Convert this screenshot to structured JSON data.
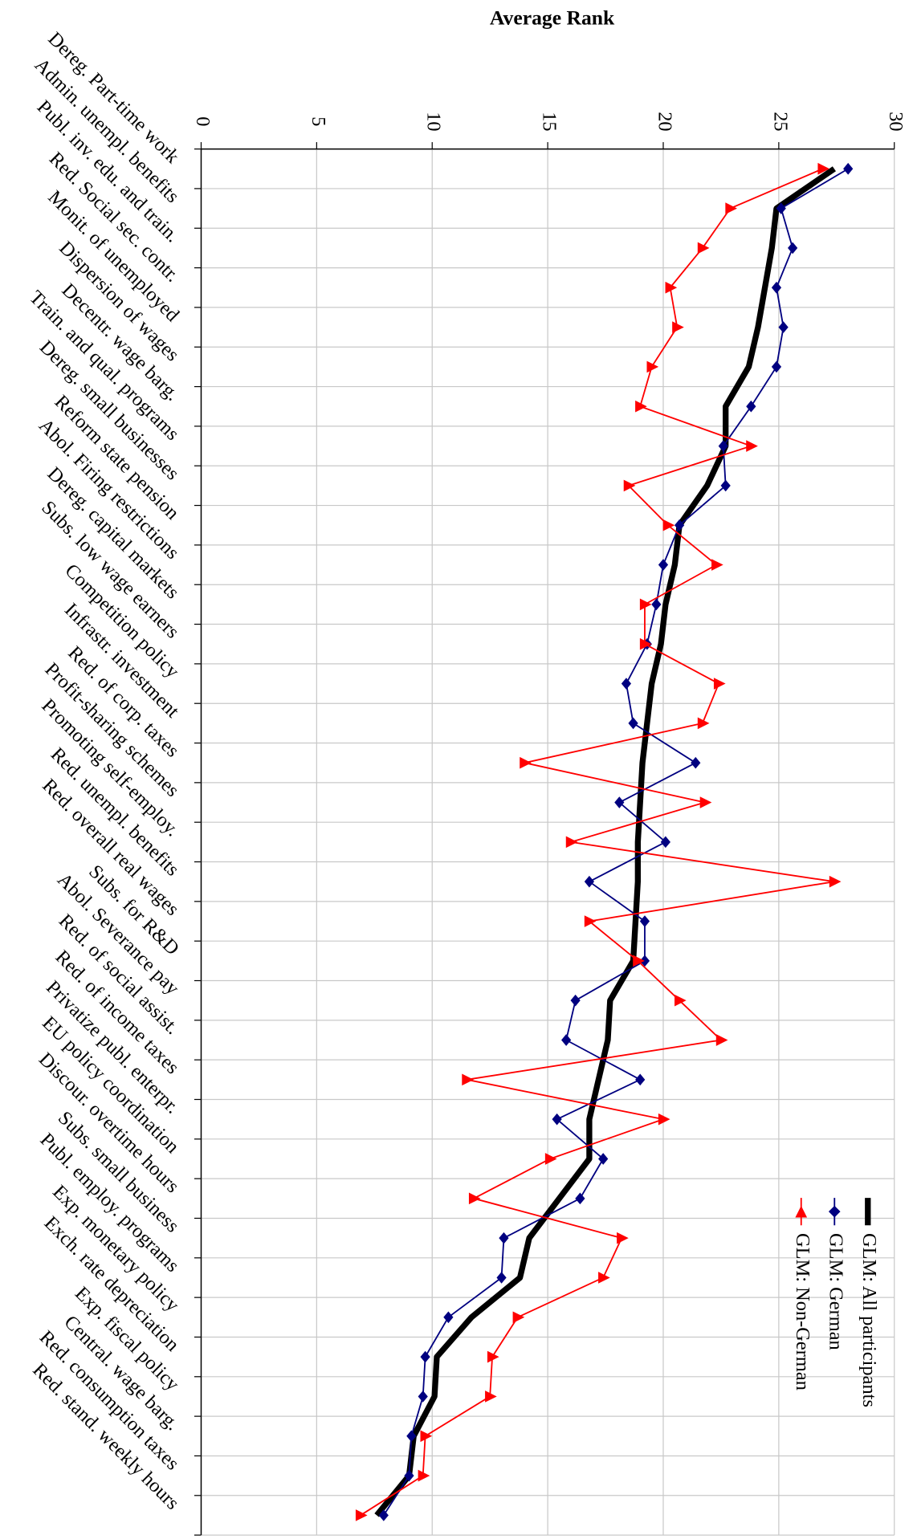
{
  "chart_data": {
    "type": "line",
    "title": "Average Rank",
    "categories": [
      "Dereg. Part-time work",
      "Admin. unempl. benefits",
      "Publ. inv. edu. and train.",
      "Red. Social sec. contr.",
      "Monit. of unemployed",
      "Dispersion of wages",
      "Decentr. wage barg.",
      "Train. and qual. programs",
      "Dereg. small businesses",
      "Reform state pension",
      "Abol. Firing restrictions",
      "Dereg. capital markets",
      "Subs. low wage earners",
      "Competition policy",
      "Infrastr. investment",
      "Red. of corp. taxes",
      "Profit-sharing schemes",
      "Promoting self-employ.",
      "Red. unempl. benefits",
      "Red. overall real wages",
      "Subs. for R&D",
      "Abol. Severance pay",
      "Red. of social assist.",
      "Red. of income taxes",
      "Privatize publ. enterpr.",
      "EU policy coordination",
      "Discour. overtime hours",
      "Subs. small business",
      "Publ. employ. programs",
      "Exp. monetary policy",
      "Exch. rate depreciation",
      "Exp. fiscal policy",
      "Central. wage barg.",
      "Red. consumption taxes",
      "Red. stand. weekly hours"
    ],
    "series": [
      {
        "name": "GLM: All participants",
        "color": "#000000",
        "values": [
          27.4,
          24.9,
          24.7,
          24.4,
          24.1,
          23.7,
          22.7,
          22.7,
          21.9,
          20.7,
          20.5,
          20.1,
          19.9,
          19.5,
          19.3,
          19.1,
          19.0,
          18.9,
          18.9,
          18.8,
          18.7,
          17.7,
          17.6,
          17.2,
          16.8,
          16.8,
          15.5,
          14.2,
          13.8,
          11.7,
          10.2,
          10.1,
          9.2,
          9.0,
          7.6
        ]
      },
      {
        "name": "GLM: German",
        "color": "#000080",
        "values": [
          28.0,
          25.1,
          25.6,
          24.9,
          25.2,
          24.9,
          23.8,
          22.6,
          22.7,
          20.7,
          20.0,
          19.7,
          19.3,
          18.4,
          18.7,
          21.4,
          18.1,
          20.1,
          16.8,
          19.2,
          19.2,
          16.2,
          15.8,
          19.0,
          15.4,
          17.4,
          16.4,
          13.1,
          13.0,
          10.7,
          9.7,
          9.6,
          9.1,
          9.0,
          7.9
        ]
      },
      {
        "name": "GLM: Non-German",
        "color": "#ff0000",
        "values": [
          26.9,
          22.9,
          21.7,
          20.3,
          20.6,
          19.5,
          19.0,
          23.8,
          18.5,
          20.2,
          22.3,
          19.2,
          19.2,
          22.4,
          21.7,
          14.0,
          21.8,
          16.0,
          27.4,
          16.8,
          18.9,
          20.7,
          22.5,
          11.5,
          20.0,
          15.1,
          11.8,
          18.2,
          17.4,
          13.7,
          12.6,
          12.5,
          9.7,
          9.6,
          6.9
        ]
      }
    ],
    "ylim": [
      0,
      30
    ],
    "yticks": [
      0,
      5,
      10,
      15,
      20,
      25,
      30
    ],
    "grid": true
  }
}
